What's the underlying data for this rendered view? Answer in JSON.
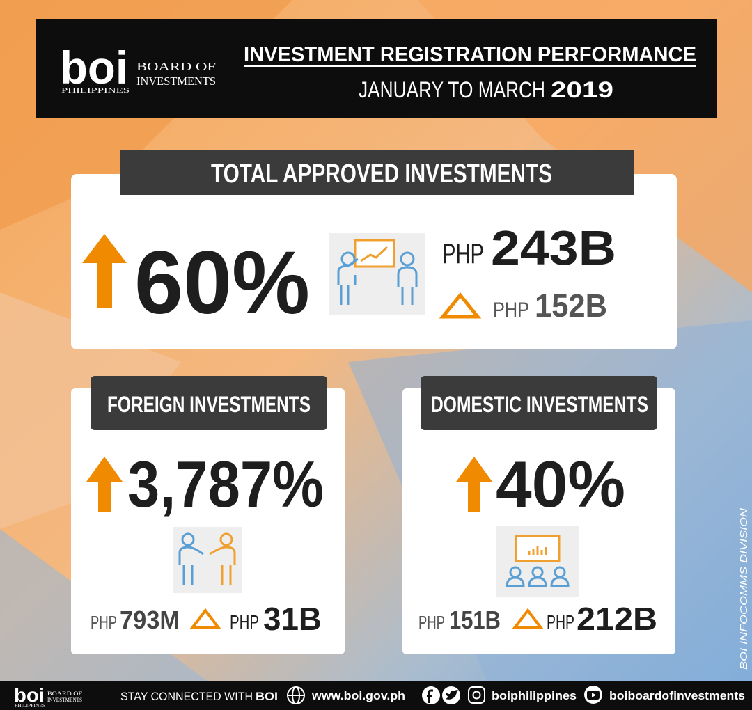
{
  "logo": {
    "mark": "boi",
    "line1": "BOARD OF",
    "line2": "INVESTMENTS",
    "country": "PHILIPPINES"
  },
  "header": {
    "title": "INVESTMENT REGISTRATION PERFORMANCE",
    "period": "JANUARY TO MARCH",
    "year": "2019"
  },
  "total": {
    "label": "TOTAL APPROVED INVESTMENTS",
    "growth": "60%",
    "current": {
      "currency": "PHP",
      "amount": "243B"
    },
    "previous": {
      "currency": "PHP",
      "amount": "152B"
    }
  },
  "foreign": {
    "label": "FOREIGN INVESTMENTS",
    "growth": "3,787%",
    "previous": {
      "currency": "PHP",
      "amount": "793M"
    },
    "current": {
      "currency": "PHP",
      "amount": "31B"
    }
  },
  "domestic": {
    "label": "DOMESTIC INVESTMENTS",
    "growth": "40%",
    "previous": {
      "currency": "PHP",
      "amount": "151B"
    },
    "current": {
      "currency": "PHP",
      "amount": "212B"
    }
  },
  "credit": "BOI INFOCOMMS DIVISION",
  "footer": {
    "stay": "STAY CONNECTED WITH",
    "brand": "BOI",
    "website": "www.boi.gov.ph",
    "instagram": "boiphilippines",
    "youtube": "boiboardofinvestments"
  }
}
